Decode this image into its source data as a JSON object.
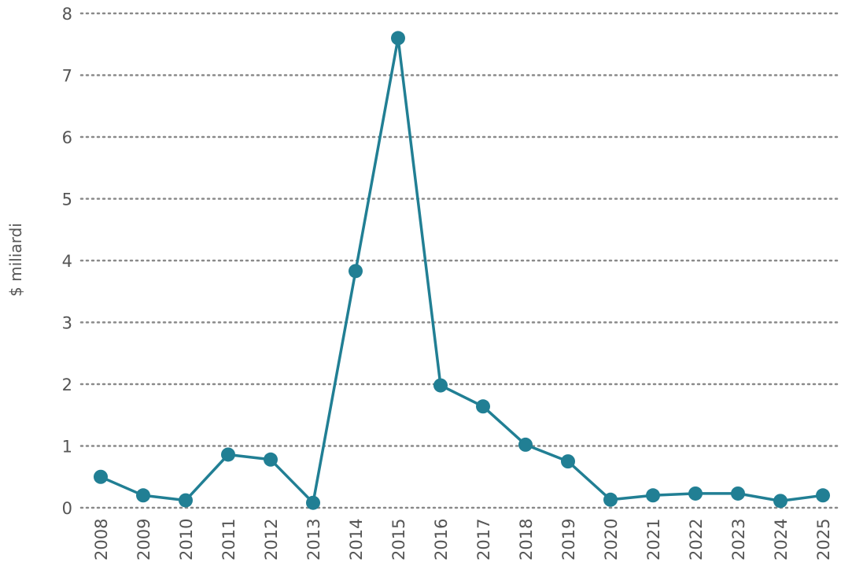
{
  "chart_data": {
    "type": "line",
    "title": "",
    "xlabel": "",
    "ylabel": "$ miliardi",
    "x": [
      "2008",
      "2009",
      "2010",
      "2011",
      "2012",
      "2013",
      "2014",
      "2015",
      "2016",
      "2017",
      "2018",
      "2019",
      "2020",
      "2021",
      "2022",
      "2023",
      "2024",
      "2025"
    ],
    "series": [
      {
        "values": [
          0.5,
          0.2,
          0.12,
          0.86,
          0.78,
          0.08,
          3.83,
          7.6,
          1.98,
          1.64,
          1.02,
          0.75,
          0.13,
          0.2,
          0.23,
          0.23,
          0.11,
          0.2
        ],
        "color": "#217f94"
      }
    ],
    "ylim": [
      0,
      8
    ],
    "yticks": [
      0,
      1,
      2,
      3,
      4,
      5,
      6,
      7,
      8
    ],
    "grid": true,
    "legend": "none"
  }
}
